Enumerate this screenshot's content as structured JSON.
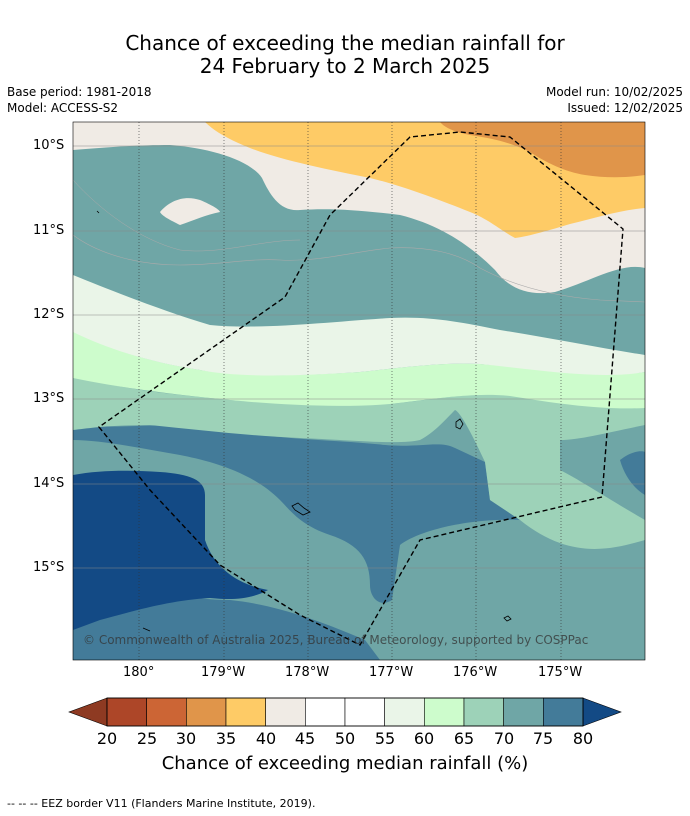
{
  "title": {
    "line1": "Chance of exceeding the median rainfall for",
    "line2": "24 February to 2 March 2025"
  },
  "meta": {
    "base_period": "Base period: 1981-2018",
    "model": "Model: ACCESS-S2",
    "model_run": "Model run: 10/02/2025",
    "issued": "Issued: 12/02/2025"
  },
  "map": {
    "lat_labels": [
      "10°S",
      "11°S",
      "12°S",
      "13°S",
      "14°S",
      "15°S"
    ],
    "lon_labels": [
      "180°",
      "179°W",
      "178°W",
      "177°W",
      "176°W",
      "175°W"
    ],
    "copyright": "© Commonwealth of Australia 2025, Bureau of Meteorology, supported by COSPPac"
  },
  "colorbar": {
    "title": "Chance of exceeding median rainfall (%)",
    "ticks": [
      "20",
      "25",
      "30",
      "35",
      "40",
      "45",
      "50",
      "55",
      "60",
      "65",
      "70",
      "75",
      "80"
    ],
    "under_color": "#8e3a22",
    "over_color": "#134a85",
    "colors": [
      "#ad4628",
      "#cc6535",
      "#e0954a",
      "#fecb66",
      "#f0ebe5",
      "#ffffff",
      "#ffffff",
      "#eaf5e8",
      "#cdfccc",
      "#9dd2b8",
      "#6fa6a6",
      "#437b99"
    ]
  },
  "footer": {
    "legend": "-- -- -- EEZ border V11 (Flanders Marine Institute, 2019)."
  }
}
